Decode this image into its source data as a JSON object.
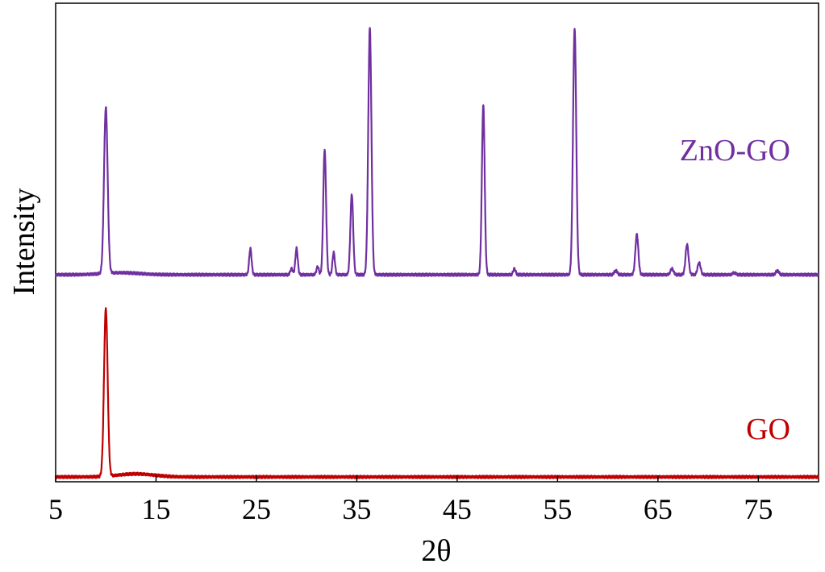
{
  "chart_data": {
    "type": "line",
    "title": "",
    "xlabel": "2θ",
    "ylabel": "Intensity",
    "xlim": [
      5,
      81
    ],
    "x_ticks": [
      5,
      15,
      25,
      35,
      45,
      55,
      65,
      75
    ],
    "y_ticks_shown": false,
    "grid": false,
    "legend": "none (series labelled inline at right)",
    "series": [
      {
        "name": "ZnO-GO",
        "color": "#7030a0",
        "baseline": 1.0,
        "peaks": [
          {
            "x": 10.0,
            "height": 0.82,
            "width": 0.18
          },
          {
            "x": 24.4,
            "height": 0.13,
            "width": 0.12
          },
          {
            "x": 28.5,
            "height": 0.03,
            "width": 0.12
          },
          {
            "x": 29.0,
            "height": 0.13,
            "width": 0.12
          },
          {
            "x": 31.1,
            "height": 0.04,
            "width": 0.12
          },
          {
            "x": 31.8,
            "height": 0.62,
            "width": 0.14
          },
          {
            "x": 32.7,
            "height": 0.11,
            "width": 0.12
          },
          {
            "x": 34.5,
            "height": 0.4,
            "width": 0.14
          },
          {
            "x": 36.3,
            "height": 1.22,
            "width": 0.16
          },
          {
            "x": 47.6,
            "height": 0.84,
            "width": 0.14
          },
          {
            "x": 50.7,
            "height": 0.03,
            "width": 0.12
          },
          {
            "x": 56.7,
            "height": 1.22,
            "width": 0.16
          },
          {
            "x": 60.8,
            "height": 0.02,
            "width": 0.15
          },
          {
            "x": 62.9,
            "height": 0.2,
            "width": 0.15
          },
          {
            "x": 66.4,
            "height": 0.03,
            "width": 0.15
          },
          {
            "x": 67.9,
            "height": 0.15,
            "width": 0.15
          },
          {
            "x": 69.1,
            "height": 0.06,
            "width": 0.15
          },
          {
            "x": 72.6,
            "height": 0.01,
            "width": 0.15
          },
          {
            "x": 76.9,
            "height": 0.02,
            "width": 0.15
          }
        ],
        "humps": [
          {
            "x": 11.5,
            "height": 0.01,
            "width": 1.8
          }
        ]
      },
      {
        "name": "GO",
        "color": "#c00000",
        "baseline": 0.0,
        "peaks": [
          {
            "x": 10.0,
            "height": 0.83,
            "width": 0.18
          }
        ],
        "humps": [
          {
            "x": 13.0,
            "height": 0.015,
            "width": 1.8
          }
        ]
      }
    ]
  }
}
